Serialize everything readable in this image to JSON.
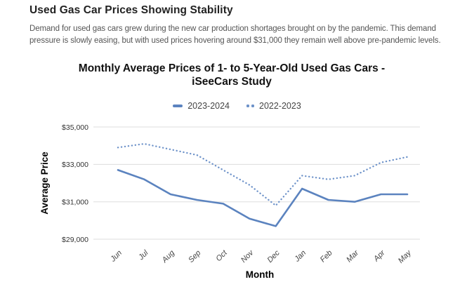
{
  "article": {
    "heading": "Used Gas Car Prices Showing Stability",
    "intro": "Demand for used gas cars grew during the new car production shortages brought on by the pandemic. This demand pressure is slowly easing, but with used prices hovering around $31,000 they remain well above pre-pandemic levels."
  },
  "chart": {
    "title_line1": "Monthly Average Prices of 1- to 5-Year-Old Used Gas Cars -",
    "title_line2": "iSeeCars Study",
    "colors": {
      "solid_line": "#5b83bf",
      "dotted_line": "#6d92c9",
      "gridline": "#dddddd",
      "y_tick_text": "#333333",
      "x_tick_text": "#444444",
      "axis_title_text": "#000000"
    }
  },
  "chart_data": {
    "type": "line",
    "title": "Monthly Average Prices of 1- to 5-Year-Old Used Gas Cars - iSeeCars Study",
    "xlabel": "Month",
    "ylabel": "Average Price",
    "x": [
      "Jun",
      "Jul",
      "Aug",
      "Sep",
      "Oct",
      "Nov",
      "Dec",
      "Jan",
      "Feb",
      "Mar",
      "Apr",
      "May"
    ],
    "series": [
      {
        "name": "2023-2024",
        "style": "solid",
        "values": [
          32700,
          32200,
          31400,
          31100,
          30900,
          30100,
          29700,
          31700,
          31100,
          31000,
          31400,
          31400
        ]
      },
      {
        "name": "2022-2023",
        "style": "dotted",
        "values": [
          33900,
          34100,
          33800,
          33500,
          32700,
          31900,
          30800,
          32400,
          32200,
          32400,
          33100,
          33400
        ]
      }
    ],
    "ylim": [
      29000,
      35000
    ],
    "yticks": [
      {
        "value": 29000,
        "label": "$29,000"
      },
      {
        "value": 31000,
        "label": "$31,000"
      },
      {
        "value": 33000,
        "label": "$33,000"
      },
      {
        "value": 35000,
        "label": "$35,000"
      }
    ],
    "grid": true,
    "legend_position": "top"
  }
}
